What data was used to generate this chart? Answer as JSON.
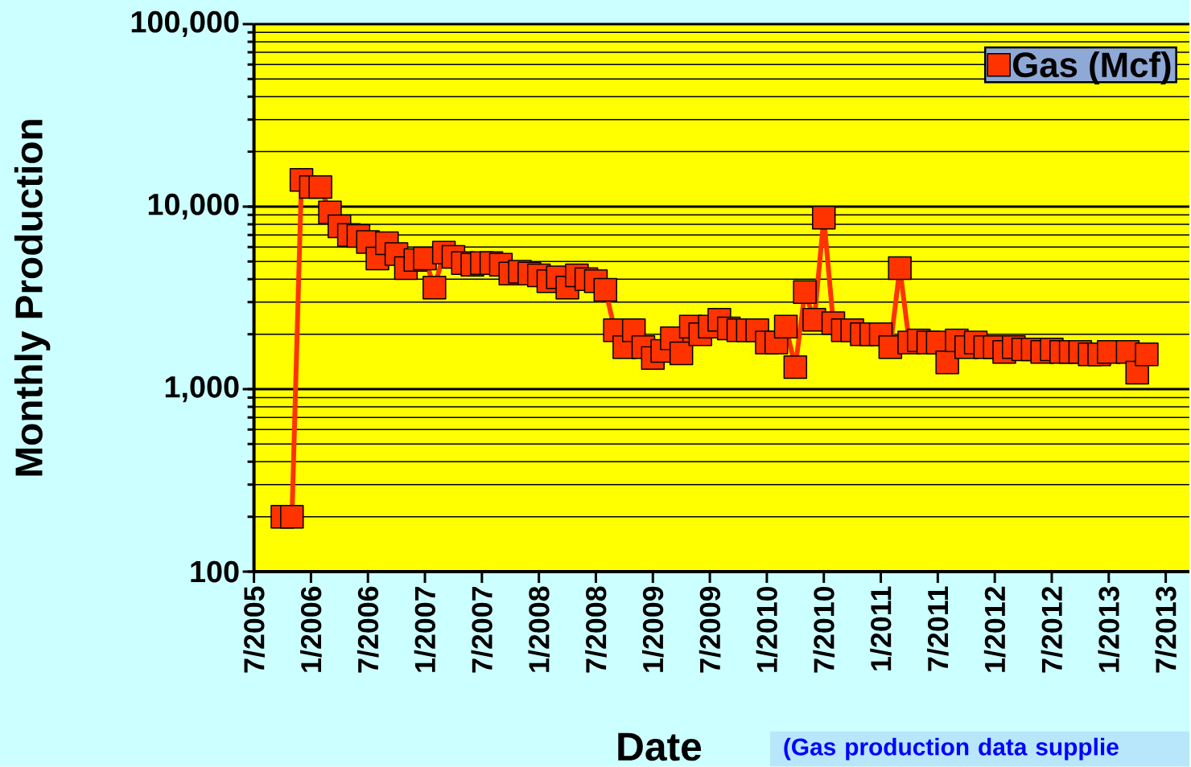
{
  "chart_data": {
    "type": "line",
    "xlabel": "Date",
    "ylabel": "Monthly Production",
    "log": true,
    "grid": "y",
    "legend": "top right",
    "marker": "square",
    "line_style": "solid",
    "xlim": [
      "2005-07",
      "2013-09-16"
    ],
    "ylim": [
      100,
      100000
    ],
    "xticks": [
      {
        "value": "2005-07",
        "label": "7/2005"
      },
      {
        "value": "2006-01",
        "label": "1/2006"
      },
      {
        "value": "2006-07",
        "label": "7/2006"
      },
      {
        "value": "2007-01",
        "label": "1/2007"
      },
      {
        "value": "2007-07",
        "label": "7/2007"
      },
      {
        "value": "2008-01",
        "label": "1/2008"
      },
      {
        "value": "2008-07",
        "label": "7/2008"
      },
      {
        "value": "2009-01",
        "label": "1/2009"
      },
      {
        "value": "2009-07",
        "label": "7/2009"
      },
      {
        "value": "2010-01",
        "label": "1/2010"
      },
      {
        "value": "2010-07",
        "label": "7/2010"
      },
      {
        "value": "2011-01",
        "label": "1/2011"
      },
      {
        "value": "2011-07",
        "label": "7/2011"
      },
      {
        "value": "2012-01",
        "label": "1/2012"
      },
      {
        "value": "2012-07",
        "label": "7/2012"
      },
      {
        "value": "2013-01",
        "label": "1/2013"
      },
      {
        "value": "2013-07",
        "label": "7/2013"
      }
    ],
    "yticks": [
      100,
      {
        "value": 1000,
        "label": "1,000"
      },
      {
        "value": 10000,
        "label": "10,000"
      },
      {
        "value": 100000,
        "label": "100,000"
      }
    ],
    "x": [
      "2005-10",
      "2005-11",
      "2005-12",
      "2006-01",
      "2006-02",
      "2006-03",
      "2006-04",
      "2006-05",
      "2006-06",
      "2006-07",
      "2006-08",
      "2006-09",
      "2006-10",
      "2006-11",
      "2006-12",
      "2007-01",
      "2007-02",
      "2007-03",
      "2007-04",
      "2007-05",
      "2007-06",
      "2007-07",
      "2007-08",
      "2007-09",
      "2007-10",
      "2007-11",
      "2007-12",
      "2008-01",
      "2008-02",
      "2008-03",
      "2008-04",
      "2008-05",
      "2008-06",
      "2008-07",
      "2008-08",
      "2008-09",
      "2008-10",
      "2008-11",
      "2008-12",
      "2009-01",
      "2009-02",
      "2009-03",
      "2009-04",
      "2009-05",
      "2009-06",
      "2009-07",
      "2009-08",
      "2009-09",
      "2009-10",
      "2009-11",
      "2009-12",
      "2010-01",
      "2010-02",
      "2010-03",
      "2010-04",
      "2010-05",
      "2010-06",
      "2010-07",
      "2010-08",
      "2010-09",
      "2010-10",
      "2010-11",
      "2010-12",
      "2011-01",
      "2011-02",
      "2011-03",
      "2011-04",
      "2011-05",
      "2011-06",
      "2011-07",
      "2011-08",
      "2011-09",
      "2011-10",
      "2011-11",
      "2011-12",
      "2012-01",
      "2012-02",
      "2012-03",
      "2012-04",
      "2012-05",
      "2012-06",
      "2012-07",
      "2012-08",
      "2012-09",
      "2012-10",
      "2012-11",
      "2012-12",
      "2013-01",
      "2013-03",
      "2013-04",
      "2013-05"
    ],
    "series": [
      {
        "name": "Gas (Mcf)",
        "color": "#ff3300",
        "values": [
          200,
          200,
          14000,
          12800,
          12800,
          9300,
          7800,
          7000,
          6900,
          6400,
          5200,
          6300,
          5500,
          4600,
          5100,
          5200,
          3600,
          5600,
          5300,
          4900,
          4800,
          4900,
          4900,
          4800,
          4300,
          4400,
          4300,
          4200,
          3900,
          4100,
          3600,
          4200,
          4000,
          3900,
          3500,
          2100,
          1700,
          2100,
          1700,
          1480,
          1620,
          1900,
          1570,
          2200,
          2000,
          2200,
          2400,
          2150,
          2100,
          2100,
          2100,
          1800,
          1800,
          2200,
          1320,
          3400,
          2400,
          8700,
          2300,
          2100,
          2100,
          2000,
          2000,
          2000,
          1700,
          4600,
          1800,
          1850,
          1800,
          1800,
          1400,
          1850,
          1700,
          1800,
          1700,
          1700,
          1600,
          1700,
          1650,
          1650,
          1600,
          1650,
          1600,
          1600,
          1600,
          1550,
          1550,
          1600,
          1600,
          1230,
          1550
        ]
      }
    ],
    "annotations": [
      "(Gas production data supplie"
    ]
  }
}
